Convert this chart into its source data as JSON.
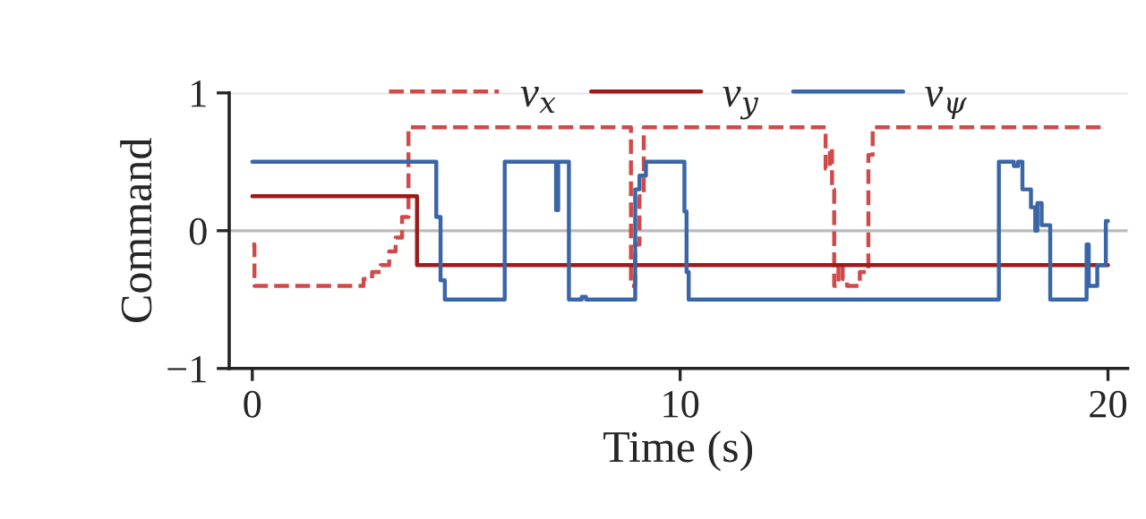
{
  "chart_data": {
    "type": "step",
    "xlabel": "Time (s)",
    "ylabel": "Command",
    "xlim": [
      -0.54,
      20.46
    ],
    "ylim": [
      -1,
      1
    ],
    "xticks": [
      0,
      10,
      20
    ],
    "yticks": [
      {
        "value": -1,
        "label": "−1"
      },
      0,
      1
    ],
    "legend": "top",
    "line_style": "solid",
    "ref_lines": [
      {
        "axis": "y",
        "value": 0,
        "color": "#bbbbbb"
      },
      {
        "axis": "y",
        "value": 1,
        "color": "#e3e3e3"
      }
    ],
    "series": [
      {
        "name": "v$_{x}$",
        "color": "#d04a4a",
        "line_style": "dashed",
        "x": [
          0,
          0.05,
          2.6,
          2.8,
          3.0,
          3.2,
          3.35,
          3.5,
          3.65,
          8.85,
          8.95,
          9.05,
          9.15,
          13.4,
          13.5,
          13.55,
          13.6,
          13.7,
          13.8,
          13.9,
          14.2,
          14.4,
          14.5,
          19.85
        ],
        "values": [
          -0.1,
          -0.4,
          -0.35,
          -0.3,
          -0.25,
          -0.15,
          -0.05,
          0.1,
          0.75,
          -0.4,
          -0.1,
          0.25,
          0.75,
          0.45,
          0.6,
          0.3,
          -0.4,
          -0.25,
          -0.35,
          -0.4,
          -0.3,
          0.55,
          0.75,
          0.75
        ]
      },
      {
        "name": "v$_{y}$",
        "color": "#9e1b1b",
        "x": [
          0,
          3.85,
          20
        ],
        "values": [
          0.25,
          -0.25,
          -0.25
        ]
      },
      {
        "name": "v$_{ψ}$",
        "color": "#3a66a8",
        "x": [
          0,
          4.3,
          4.4,
          4.5,
          5.9,
          7.1,
          7.15,
          7.4,
          7.7,
          7.8,
          8.95,
          9.05,
          9.2,
          10.1,
          10.15,
          10.2,
          17.45,
          17.8,
          17.9,
          18.0,
          18.2,
          18.3,
          18.35,
          18.45,
          18.65,
          19.5,
          19.55,
          19.75,
          19.95,
          20
        ],
        "values": [
          0.5,
          0.1,
          -0.36,
          -0.5,
          0.5,
          0.15,
          0.5,
          -0.5,
          -0.48,
          -0.5,
          0.3,
          0.4,
          0.5,
          0.14,
          -0.3,
          -0.5,
          0.5,
          0.47,
          0.5,
          0.3,
          0.17,
          0.0,
          0.2,
          0.04,
          -0.5,
          -0.1,
          -0.4,
          -0.25,
          0.07,
          0.07
        ]
      }
    ]
  }
}
